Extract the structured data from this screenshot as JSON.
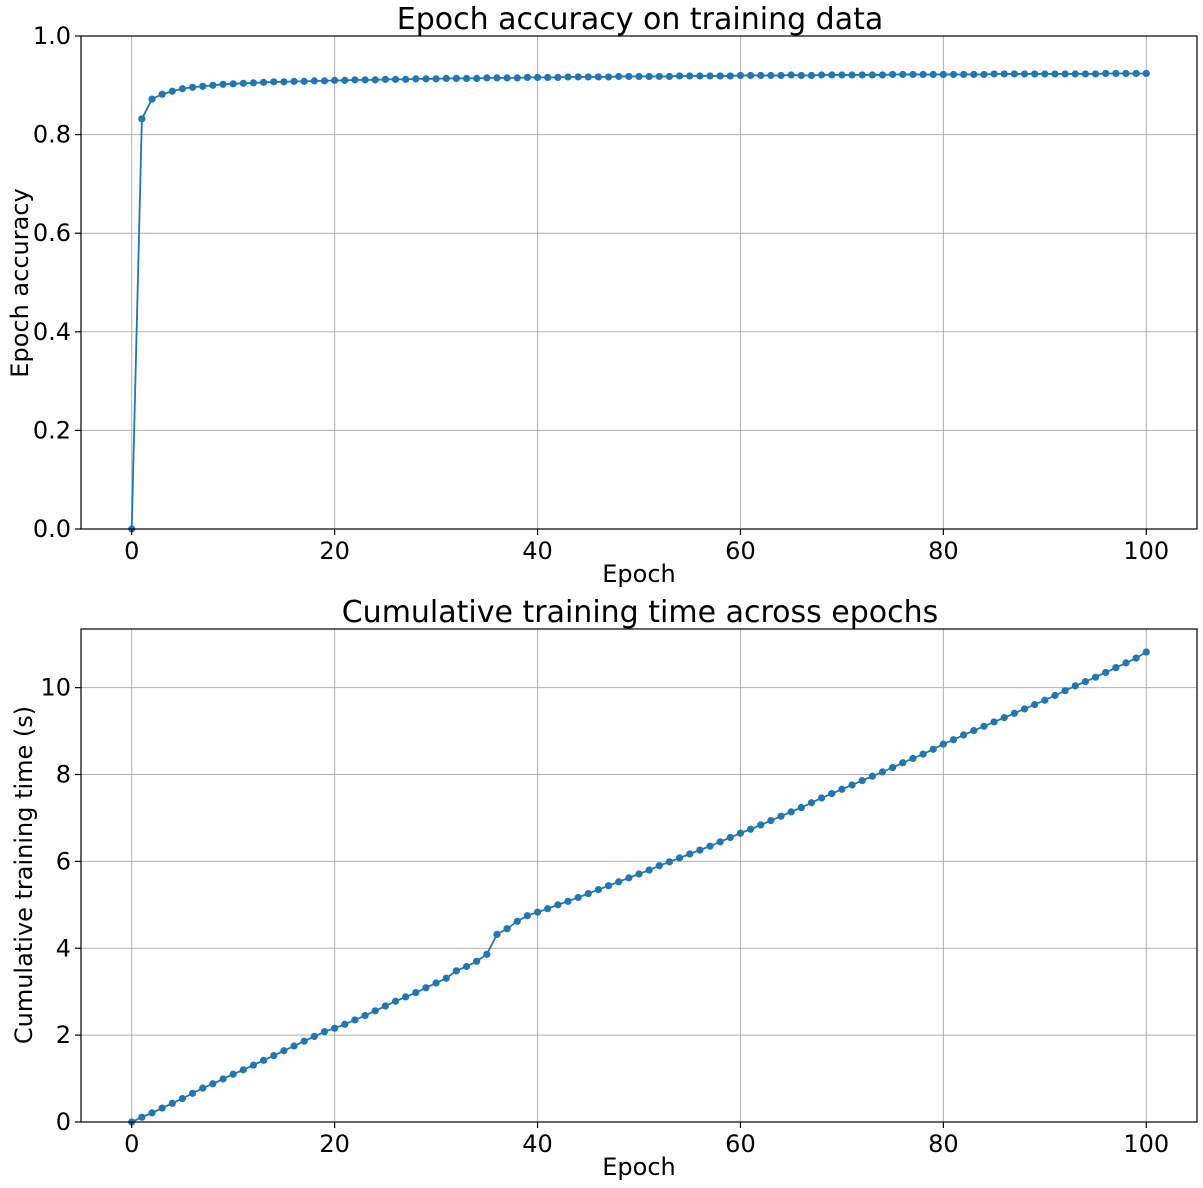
{
  "colors": {
    "series": "#1f77b4",
    "grid": "#b0b0b0"
  },
  "chart_data": [
    {
      "type": "line",
      "title": "Epoch accuracy on training data",
      "xlabel": "Epoch",
      "ylabel": "Epoch accuracy",
      "xlim": [
        -5,
        105
      ],
      "ylim": [
        0,
        1.0
      ],
      "xticks": [
        0,
        20,
        40,
        60,
        80,
        100
      ],
      "xtick_labels": [
        "0",
        "20",
        "40",
        "60",
        "80",
        "100"
      ],
      "yticks": [
        0,
        0.2,
        0.4,
        0.6,
        0.8,
        1.0
      ],
      "ytick_labels": [
        "0.0",
        "0.2",
        "0.4",
        "0.6",
        "0.8",
        "1.0"
      ],
      "grid": true,
      "marker": "circle",
      "x": [
        0,
        1,
        2,
        3,
        4,
        5,
        6,
        7,
        8,
        9,
        10,
        11,
        12,
        13,
        14,
        15,
        16,
        17,
        18,
        19,
        20,
        21,
        22,
        23,
        24,
        25,
        26,
        27,
        28,
        29,
        30,
        31,
        32,
        33,
        34,
        35,
        36,
        37,
        38,
        39,
        40,
        41,
        42,
        43,
        44,
        45,
        46,
        47,
        48,
        49,
        50,
        51,
        52,
        53,
        54,
        55,
        56,
        57,
        58,
        59,
        60,
        61,
        62,
        63,
        64,
        65,
        66,
        67,
        68,
        69,
        70,
        71,
        72,
        73,
        74,
        75,
        76,
        77,
        78,
        79,
        80,
        81,
        82,
        83,
        84,
        85,
        86,
        87,
        88,
        89,
        90,
        91,
        92,
        93,
        94,
        95,
        96,
        97,
        98,
        99,
        100
      ],
      "y": [
        0.0,
        0.832,
        0.872,
        0.882,
        0.888,
        0.893,
        0.896,
        0.898,
        0.9,
        0.902,
        0.903,
        0.904,
        0.905,
        0.906,
        0.907,
        0.907,
        0.908,
        0.908,
        0.909,
        0.909,
        0.91,
        0.91,
        0.911,
        0.911,
        0.911,
        0.912,
        0.912,
        0.912,
        0.913,
        0.913,
        0.913,
        0.914,
        0.914,
        0.914,
        0.914,
        0.915,
        0.915,
        0.915,
        0.915,
        0.916,
        0.916,
        0.916,
        0.916,
        0.917,
        0.917,
        0.917,
        0.917,
        0.917,
        0.918,
        0.918,
        0.918,
        0.918,
        0.918,
        0.918,
        0.919,
        0.919,
        0.919,
        0.919,
        0.919,
        0.919,
        0.92,
        0.92,
        0.92,
        0.92,
        0.92,
        0.921,
        0.92,
        0.92,
        0.921,
        0.921,
        0.921,
        0.921,
        0.921,
        0.921,
        0.921,
        0.922,
        0.922,
        0.922,
        0.922,
        0.922,
        0.922,
        0.922,
        0.922,
        0.922,
        0.922,
        0.923,
        0.923,
        0.923,
        0.923,
        0.923,
        0.923,
        0.923,
        0.923,
        0.923,
        0.923,
        0.923,
        0.924,
        0.924,
        0.924,
        0.924,
        0.924
      ]
    },
    {
      "type": "line",
      "title": "Cumulative training time across epochs",
      "xlabel": "Epoch",
      "ylabel": "Cumulative training time (s)",
      "xlim": [
        -5,
        105
      ],
      "ylim": [
        0,
        11.35
      ],
      "xticks": [
        0,
        20,
        40,
        60,
        80,
        100
      ],
      "xtick_labels": [
        "0",
        "20",
        "40",
        "60",
        "80",
        "100"
      ],
      "yticks": [
        0,
        2,
        4,
        6,
        8,
        10
      ],
      "ytick_labels": [
        "0",
        "2",
        "4",
        "6",
        "8",
        "10"
      ],
      "grid": true,
      "marker": "circle",
      "x": [
        0,
        1,
        2,
        3,
        4,
        5,
        6,
        7,
        8,
        9,
        10,
        11,
        12,
        13,
        14,
        15,
        16,
        17,
        18,
        19,
        20,
        21,
        22,
        23,
        24,
        25,
        26,
        27,
        28,
        29,
        30,
        31,
        32,
        33,
        34,
        35,
        36,
        37,
        38,
        39,
        40,
        41,
        42,
        43,
        44,
        45,
        46,
        47,
        48,
        49,
        50,
        51,
        52,
        53,
        54,
        55,
        56,
        57,
        58,
        59,
        60,
        61,
        62,
        63,
        64,
        65,
        66,
        67,
        68,
        69,
        70,
        71,
        72,
        73,
        74,
        75,
        76,
        77,
        78,
        79,
        80,
        81,
        82,
        83,
        84,
        85,
        86,
        87,
        88,
        89,
        90,
        91,
        92,
        93,
        94,
        95,
        96,
        97,
        98,
        99,
        100
      ],
      "y": [
        0.0,
        0.11,
        0.21,
        0.32,
        0.43,
        0.54,
        0.66,
        0.78,
        0.88,
        0.99,
        1.1,
        1.2,
        1.31,
        1.42,
        1.53,
        1.64,
        1.75,
        1.86,
        1.97,
        2.08,
        2.16,
        2.25,
        2.35,
        2.45,
        2.56,
        2.67,
        2.78,
        2.88,
        2.98,
        3.09,
        3.2,
        3.31,
        3.48,
        3.58,
        3.7,
        3.86,
        4.32,
        4.45,
        4.62,
        4.75,
        4.83,
        4.91,
        5.0,
        5.08,
        5.17,
        5.26,
        5.35,
        5.44,
        5.53,
        5.62,
        5.71,
        5.8,
        5.9,
        5.99,
        6.08,
        6.17,
        6.26,
        6.35,
        6.45,
        6.55,
        6.65,
        6.74,
        6.84,
        6.94,
        7.04,
        7.14,
        7.24,
        7.35,
        7.46,
        7.56,
        7.66,
        7.76,
        7.86,
        7.96,
        8.06,
        8.16,
        8.27,
        8.37,
        8.47,
        8.58,
        8.7,
        8.8,
        8.91,
        9.01,
        9.11,
        9.21,
        9.31,
        9.41,
        9.51,
        9.61,
        9.71,
        9.82,
        9.93,
        10.04,
        10.14,
        10.24,
        10.35,
        10.46,
        10.57,
        10.68,
        10.82
      ]
    }
  ]
}
